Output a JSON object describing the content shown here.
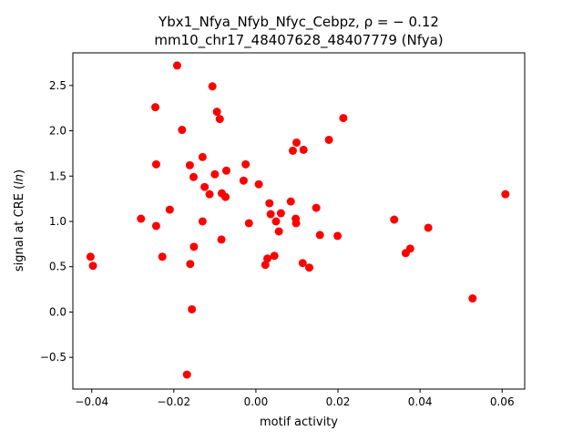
{
  "chart_data": {
    "type": "scatter",
    "title_line1": "Ybx1_Nfya_Nfyb_Nfyc_Cebpz, ρ = − 0.12",
    "title_line2": "mm10_chr17_48407628_48407779 (Nfya)",
    "xlabel": "motif activity",
    "ylabel": "signal at CRE (ln)",
    "xlim": [
      -0.0446,
      0.0655
    ],
    "ylim": [
      -0.85,
      2.86
    ],
    "x_ticks": [
      -0.04,
      -0.02,
      0.0,
      0.02,
      0.04,
      0.06
    ],
    "x_tick_labels": [
      "−0.04",
      "−0.02",
      "0.00",
      "0.02",
      "0.04",
      "0.06"
    ],
    "y_ticks": [
      -0.5,
      0.0,
      0.5,
      1.0,
      1.5,
      2.0,
      2.5
    ],
    "y_tick_labels": [
      "−0.5",
      "0.0",
      "0.5",
      "1.0",
      "1.5",
      "2.0",
      "2.5"
    ],
    "marker_color": "#ff0000",
    "grid": false,
    "points": [
      {
        "x": -0.0403,
        "y": 0.61
      },
      {
        "x": -0.0397,
        "y": 0.51
      },
      {
        "x": -0.028,
        "y": 1.03
      },
      {
        "x": -0.0245,
        "y": 2.26
      },
      {
        "x": -0.0243,
        "y": 1.63
      },
      {
        "x": -0.0243,
        "y": 0.95
      },
      {
        "x": -0.0228,
        "y": 0.61
      },
      {
        "x": -0.021,
        "y": 1.13
      },
      {
        "x": -0.0192,
        "y": 2.72
      },
      {
        "x": -0.018,
        "y": 2.01
      },
      {
        "x": -0.0168,
        "y": -0.69
      },
      {
        "x": -0.0161,
        "y": 1.62
      },
      {
        "x": -0.016,
        "y": 0.53
      },
      {
        "x": -0.0156,
        "y": 0.03
      },
      {
        "x": -0.0152,
        "y": 1.49
      },
      {
        "x": -0.0151,
        "y": 0.72
      },
      {
        "x": -0.013,
        "y": 1.71
      },
      {
        "x": -0.013,
        "y": 1.0
      },
      {
        "x": -0.0125,
        "y": 1.38
      },
      {
        "x": -0.0113,
        "y": 1.3
      },
      {
        "x": -0.0106,
        "y": 2.49
      },
      {
        "x": -0.01,
        "y": 1.52
      },
      {
        "x": -0.0095,
        "y": 2.21
      },
      {
        "x": -0.0088,
        "y": 2.13
      },
      {
        "x": -0.0084,
        "y": 0.8
      },
      {
        "x": -0.0083,
        "y": 1.31
      },
      {
        "x": -0.0074,
        "y": 1.27
      },
      {
        "x": -0.0072,
        "y": 1.56
      },
      {
        "x": -0.003,
        "y": 1.45
      },
      {
        "x": -0.0025,
        "y": 1.63
      },
      {
        "x": -0.0017,
        "y": 0.98
      },
      {
        "x": 0.0007,
        "y": 1.41
      },
      {
        "x": 0.0023,
        "y": 0.52
      },
      {
        "x": 0.0028,
        "y": 0.59
      },
      {
        "x": 0.0033,
        "y": 1.2
      },
      {
        "x": 0.0036,
        "y": 1.08
      },
      {
        "x": 0.0045,
        "y": 0.62
      },
      {
        "x": 0.0049,
        "y": 1.0
      },
      {
        "x": 0.0056,
        "y": 0.89
      },
      {
        "x": 0.0061,
        "y": 1.09
      },
      {
        "x": 0.0085,
        "y": 1.22
      },
      {
        "x": 0.009,
        "y": 1.78
      },
      {
        "x": 0.0097,
        "y": 1.03
      },
      {
        "x": 0.0098,
        "y": 0.98
      },
      {
        "x": 0.0099,
        "y": 1.87
      },
      {
        "x": 0.0114,
        "y": 0.54
      },
      {
        "x": 0.0116,
        "y": 1.79
      },
      {
        "x": 0.013,
        "y": 0.49
      },
      {
        "x": 0.0147,
        "y": 1.15
      },
      {
        "x": 0.0156,
        "y": 0.85
      },
      {
        "x": 0.0178,
        "y": 1.9
      },
      {
        "x": 0.0199,
        "y": 0.84
      },
      {
        "x": 0.0213,
        "y": 2.14
      },
      {
        "x": 0.0337,
        "y": 1.02
      },
      {
        "x": 0.0365,
        "y": 0.65
      },
      {
        "x": 0.0376,
        "y": 0.7
      },
      {
        "x": 0.042,
        "y": 0.93
      },
      {
        "x": 0.0528,
        "y": 0.15
      },
      {
        "x": 0.0608,
        "y": 1.3
      }
    ]
  }
}
